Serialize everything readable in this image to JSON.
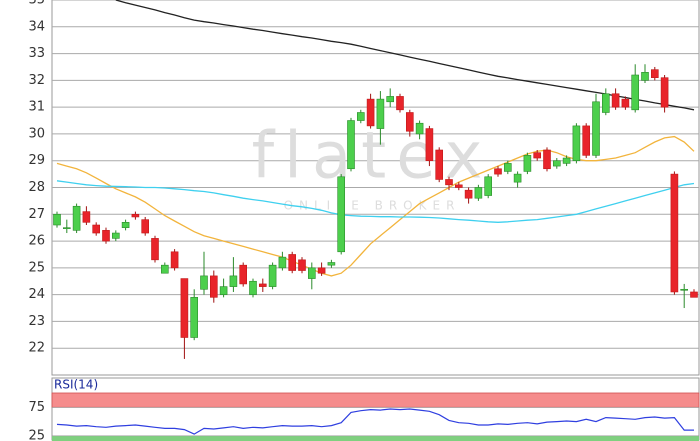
{
  "chart_data": [
    {
      "type": "candlestick",
      "watermark": "flatex",
      "watermark_sub": "ONLINE BROKER",
      "ylim": [
        21,
        35
      ],
      "yticks": [
        22,
        23,
        24,
        25,
        26,
        27,
        28,
        29,
        30,
        31,
        32,
        33,
        34,
        35
      ],
      "grid": true,
      "up_color": "#4ccf4c",
      "down_color": "#e8242a",
      "open": [
        26.6,
        26.5,
        26.4,
        27.1,
        26.6,
        26.4,
        26.1,
        26.5,
        27.0,
        26.8,
        26.1,
        24.8,
        25.6,
        24.6,
        22.4,
        24.2,
        24.7,
        24.0,
        24.3,
        25.1,
        24.0,
        24.4,
        24.3,
        25.0,
        25.5,
        25.3,
        24.6,
        25.0,
        25.1,
        25.6,
        28.7,
        30.5,
        31.3,
        30.2,
        31.2,
        31.4,
        30.8,
        30.0,
        30.2,
        29.4,
        28.3,
        28.1,
        27.9,
        27.6,
        27.7,
        28.7,
        28.6,
        28.2,
        28.6,
        29.3,
        29.4,
        28.8,
        28.9,
        29.0,
        30.3,
        29.2,
        30.8,
        31.5,
        31.3,
        30.9,
        32.0,
        32.4,
        32.1,
        28.5,
        24.2,
        24.1
      ],
      "high": [
        27.1,
        26.8,
        27.4,
        27.3,
        26.7,
        26.5,
        26.4,
        26.8,
        27.1,
        26.9,
        26.2,
        25.2,
        25.7,
        24.6,
        24.2,
        25.6,
        24.9,
        24.6,
        25.4,
        25.2,
        24.6,
        24.6,
        25.2,
        25.6,
        25.6,
        25.4,
        25.2,
        25.2,
        25.3,
        28.5,
        30.6,
        30.9,
        31.5,
        31.6,
        31.7,
        31.5,
        30.9,
        30.5,
        30.3,
        29.5,
        28.4,
        28.2,
        28.0,
        28.1,
        28.5,
        28.8,
        29.0,
        28.6,
        29.3,
        29.4,
        29.5,
        29.1,
        29.2,
        30.4,
        30.4,
        31.5,
        31.7,
        31.7,
        31.4,
        32.6,
        32.6,
        32.5,
        32.2,
        28.6,
        24.4,
        24.2
      ],
      "low": [
        26.5,
        26.3,
        26.3,
        26.6,
        26.2,
        25.9,
        26.0,
        26.4,
        26.8,
        26.2,
        25.2,
        24.8,
        24.9,
        21.6,
        22.3,
        24.0,
        23.7,
        23.9,
        24.1,
        24.3,
        23.9,
        24.1,
        24.2,
        24.9,
        24.8,
        24.8,
        24.2,
        24.7,
        25.0,
        25.5,
        28.6,
        30.4,
        30.2,
        29.6,
        31.0,
        30.8,
        29.9,
        29.8,
        28.8,
        28.2,
        27.9,
        27.9,
        27.4,
        27.5,
        27.6,
        28.4,
        28.5,
        28.0,
        28.5,
        29.0,
        28.6,
        28.7,
        28.8,
        28.9,
        29.1,
        29.1,
        30.7,
        30.9,
        30.9,
        30.8,
        31.9,
        32.0,
        30.8,
        24.0,
        23.5,
        23.9
      ],
      "close": [
        27.0,
        26.5,
        27.3,
        26.7,
        26.3,
        26.0,
        26.3,
        26.7,
        26.9,
        26.3,
        25.3,
        25.1,
        25.0,
        22.4,
        23.9,
        24.7,
        23.9,
        24.3,
        24.7,
        24.4,
        24.5,
        24.3,
        25.1,
        25.4,
        24.9,
        24.9,
        25.0,
        24.8,
        25.2,
        28.4,
        30.5,
        30.8,
        30.3,
        31.3,
        31.4,
        30.9,
        30.1,
        30.4,
        29.0,
        28.3,
        28.1,
        28.0,
        27.6,
        28.0,
        28.4,
        28.5,
        28.9,
        28.5,
        29.2,
        29.1,
        28.7,
        29.0,
        29.1,
        30.3,
        29.2,
        31.2,
        31.5,
        31.0,
        31.0,
        32.2,
        32.3,
        32.1,
        31.0,
        24.1,
        24.2,
        23.9
      ],
      "series": [
        {
          "color": "#222222",
          "values": [
            null,
            null,
            null,
            null,
            null,
            null,
            35.0,
            34.9,
            34.81,
            34.72,
            34.63,
            34.53,
            34.44,
            34.34,
            34.25,
            34.19,
            34.14,
            34.08,
            34.03,
            33.97,
            33.91,
            33.86,
            33.8,
            33.74,
            33.69,
            33.63,
            33.58,
            33.52,
            33.46,
            33.41,
            33.35,
            33.27,
            33.19,
            33.11,
            33.03,
            32.95,
            32.87,
            32.79,
            32.71,
            32.63,
            32.55,
            32.47,
            32.39,
            32.31,
            32.23,
            32.15,
            32.09,
            32.03,
            31.97,
            31.91,
            31.85,
            31.79,
            31.73,
            31.67,
            31.61,
            31.55,
            31.49,
            31.42,
            31.36,
            31.29,
            31.23,
            31.16,
            31.1,
            31.03,
            30.97,
            30.9
          ]
        },
        {
          "color": "#f2b43c",
          "values": [
            28.9,
            28.8,
            28.7,
            28.55,
            28.35,
            28.15,
            27.95,
            27.8,
            27.65,
            27.45,
            27.2,
            26.95,
            26.75,
            26.55,
            26.35,
            26.2,
            26.1,
            26.0,
            25.9,
            25.8,
            25.7,
            25.6,
            25.5,
            25.4,
            25.25,
            25.1,
            24.95,
            24.8,
            24.7,
            24.8,
            25.1,
            25.5,
            25.9,
            26.2,
            26.5,
            26.8,
            27.1,
            27.4,
            27.6,
            27.8,
            28.0,
            28.2,
            28.35,
            28.5,
            28.65,
            28.8,
            28.95,
            29.1,
            29.25,
            29.35,
            29.4,
            29.3,
            29.15,
            29.05,
            29.0,
            29.0,
            29.05,
            29.1,
            29.2,
            29.3,
            29.5,
            29.7,
            29.85,
            29.9,
            29.7,
            29.35
          ]
        },
        {
          "color": "#3fd0ef",
          "values": [
            28.25,
            28.2,
            28.15,
            28.1,
            28.07,
            28.05,
            28.04,
            28.03,
            28.02,
            28.0,
            28.0,
            27.98,
            27.95,
            27.92,
            27.88,
            27.85,
            27.8,
            27.73,
            27.67,
            27.6,
            27.55,
            27.5,
            27.44,
            27.38,
            27.32,
            27.28,
            27.22,
            27.15,
            27.05,
            26.98,
            26.95,
            26.93,
            26.92,
            26.91,
            26.91,
            26.9,
            26.9,
            26.89,
            26.88,
            26.86,
            26.83,
            26.8,
            26.78,
            26.75,
            26.72,
            26.7,
            26.72,
            26.75,
            26.78,
            26.8,
            26.85,
            26.9,
            26.95,
            27.0,
            27.1,
            27.2,
            27.3,
            27.4,
            27.5,
            27.6,
            27.7,
            27.8,
            27.9,
            28.0,
            28.1,
            28.15
          ]
        }
      ]
    },
    {
      "type": "line",
      "title": "RSI(14)",
      "ylim": [
        16,
        100
      ],
      "yticks": [
        25,
        75
      ],
      "bands": [
        {
          "from": 75,
          "to": 100,
          "color": "#f58c8c"
        },
        {
          "from": 16,
          "to": 25,
          "color": "#7fd07f"
        }
      ],
      "series": [
        {
          "color": "#2f3fe0",
          "values": [
            45,
            44,
            42,
            43,
            41,
            40,
            42,
            43,
            44,
            42,
            40,
            38,
            38,
            36,
            28,
            38,
            37,
            39,
            41,
            38,
            40,
            39,
            41,
            43,
            42,
            42,
            43,
            41,
            43,
            48,
            66,
            69,
            71,
            70,
            72,
            71,
            72,
            70,
            68,
            62,
            52,
            48,
            47,
            44,
            44,
            46,
            45,
            47,
            48,
            46,
            49,
            50,
            51,
            50,
            54,
            50,
            57,
            56,
            55,
            54,
            57,
            58,
            56,
            57,
            35,
            35
          ]
        }
      ]
    }
  ]
}
